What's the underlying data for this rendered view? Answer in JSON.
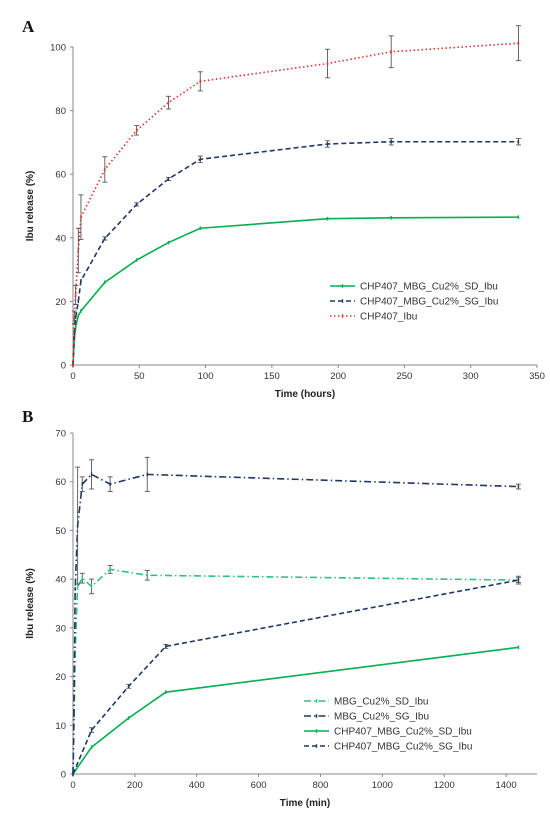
{
  "chart_data": [
    {
      "panel": "A",
      "type": "line",
      "title": "",
      "xlabel": "Time (hours)",
      "ylabel": "Ibu release (%)",
      "xlim": [
        0,
        350
      ],
      "ylim": [
        0,
        100
      ],
      "xticks": [
        0,
        50,
        100,
        150,
        200,
        250,
        300,
        350
      ],
      "yticks": [
        0,
        20,
        40,
        60,
        80,
        100
      ],
      "grid": false,
      "legend_position": "bottom-right",
      "series": [
        {
          "name": "CHP407_MBG_Cu2%_SD_Ibu",
          "color": "#00b050",
          "dash": "solid",
          "x": [
            0,
            1,
            2,
            4,
            6,
            24,
            48,
            72,
            96,
            192,
            240,
            336
          ],
          "y": [
            0,
            8,
            12,
            15.5,
            17,
            26,
            33,
            38.5,
            43,
            46,
            46.3,
            46.5
          ],
          "err": [
            0,
            0,
            0,
            0,
            0,
            0,
            0,
            0,
            0,
            0,
            0,
            0
          ]
        },
        {
          "name": "CHP407_MBG_Cu2%_SG_Ibu",
          "color": "#1f3864",
          "dash": "dashed",
          "x": [
            0,
            1,
            2,
            4,
            6,
            24,
            48,
            72,
            96,
            192,
            240,
            336
          ],
          "y": [
            0,
            10,
            15,
            20,
            26.5,
            39.8,
            50.5,
            58.5,
            64.7,
            69.5,
            70.2,
            70.2
          ],
          "err": [
            0,
            0,
            0,
            0,
            0,
            0.5,
            0.5,
            0.5,
            1,
            1,
            1,
            1
          ]
        },
        {
          "name": "CHP407_Ibu",
          "color": "#e8322a",
          "dash": "dotted",
          "x": [
            0,
            1,
            2,
            4,
            6,
            24,
            48,
            72,
            96,
            192,
            240,
            336
          ],
          "y": [
            0,
            15,
            22,
            36,
            46.5,
            61.5,
            73.8,
            82.5,
            89.2,
            94.8,
            98.5,
            101.2
          ],
          "err": [
            0,
            2,
            3,
            7,
            7,
            4,
            1.5,
            2,
            3,
            4.5,
            5,
            5.5
          ]
        }
      ]
    },
    {
      "panel": "B",
      "type": "line",
      "title": "",
      "xlabel": "Time (min)",
      "ylabel": "Ibu release (%)",
      "xlim": [
        0,
        1500
      ],
      "ylim": [
        0,
        70
      ],
      "xticks": [
        0,
        200,
        400,
        600,
        800,
        1000,
        1200,
        1400
      ],
      "yticks": [
        0,
        10,
        20,
        30,
        40,
        50,
        60,
        70
      ],
      "grid": false,
      "legend_position": "bottom-right",
      "series": [
        {
          "name": "MBG_Cu2%_SD_Ibu",
          "color": "#2ec27e",
          "dash": "dashdot",
          "x": [
            0,
            3,
            7,
            15,
            30,
            60,
            120,
            240,
            1440
          ],
          "y": [
            0,
            10,
            25,
            38.5,
            40.2,
            38.5,
            42,
            40.8,
            39.8
          ],
          "err": [
            0,
            0,
            0,
            0,
            1,
            1.5,
            0.8,
            1,
            0.5
          ]
        },
        {
          "name": "MBG_Cu2%_SG_Ibu",
          "color": "#1f3864",
          "dash": "dashdot",
          "x": [
            0,
            3,
            7,
            15,
            30,
            60,
            120,
            240,
            1440
          ],
          "y": [
            0,
            12,
            38,
            51,
            59.5,
            61.5,
            59.5,
            61.5,
            59
          ],
          "err": [
            0,
            0,
            0,
            12,
            1.5,
            3,
            1.5,
            3.5,
            0.5
          ]
        },
        {
          "name": "CHP407_MBG_Cu2%_SD_Ibu",
          "color": "#00b050",
          "dash": "solid",
          "x": [
            0,
            60,
            180,
            300,
            1440
          ],
          "y": [
            0,
            5.5,
            11.5,
            16.8,
            26
          ],
          "err": [
            0,
            0,
            0,
            0,
            0
          ]
        },
        {
          "name": "CHP407_MBG_Cu2%_SG_Ibu",
          "color": "#1f3864",
          "dash": "dashed",
          "x": [
            0,
            60,
            180,
            300,
            1440
          ],
          "y": [
            0,
            9,
            18,
            26.2,
            39.8
          ],
          "err": [
            0,
            0.5,
            0.4,
            0.4,
            0.8
          ]
        }
      ]
    }
  ]
}
